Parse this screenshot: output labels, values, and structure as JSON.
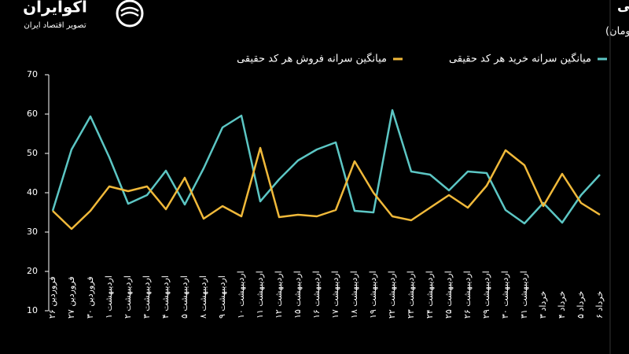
{
  "brand": {
    "name": "آکوایران",
    "tagline": "تصویر اقتصاد ایران"
  },
  "chart_data": {
    "type": "line",
    "title": "روند میانگین روزانه سرانه خرید و فروش هر کد حقیقی",
    "subtitle": "(واحد: میلیون تومان)",
    "categories": [
      "فروردین ۲۶",
      "فروردین ۲۷",
      "فروردین ۳۰",
      "اردیبهشت ۱",
      "اردیبهشت ۲",
      "اردیبهشت ۳",
      "اردیبهشت ۴",
      "اردیبهشت ۵",
      "اردیبهشت ۸",
      "اردیبهشت ۹",
      "اردیبهشت ۱۰",
      "اردیبهشت ۱۱",
      "اردیبهشت ۱۲",
      "اردیبهشت ۱۵",
      "اردیبهشت ۱۶",
      "اردیبهشت ۱۷",
      "اردیبهشت ۱۸",
      "اردیبهشت ۱۹",
      "اردیبهشت ۲۲",
      "اردیبهشت ۲۳",
      "اردیبهشت ۲۴",
      "اردیبهشت ۲۵",
      "اردیبهشت ۲۶",
      "اردیبهشت ۲۹",
      "اردیبهشت ۳۰",
      "اردیبهشت ۳۱",
      "خرداد ۳",
      "خرداد ۴",
      "خرداد ۵",
      "خرداد ۶"
    ],
    "series": [
      {
        "name": "میانگین سرانه خرید هر کد حقیقی",
        "color": "#5cc6c4",
        "values": [
          35.4,
          51,
          59.4,
          49,
          37.2,
          39.4,
          45.6,
          37,
          46.2,
          56.6,
          59.6,
          37.8,
          43.4,
          48.2,
          51,
          52.8,
          35.4,
          35,
          61,
          45.4,
          44.6,
          40.6,
          45.4,
          45,
          35.6,
          32.2,
          37.4,
          32.4,
          39.4,
          44.6
        ]
      },
      {
        "name": "میانگین سرانه فروش هر کد حقیقی",
        "color": "#f0b93a",
        "values": [
          35.4,
          30.8,
          35.4,
          41.6,
          40.4,
          41.6,
          35.8,
          43.8,
          33.4,
          36.6,
          34,
          51.4,
          33.8,
          34.4,
          34,
          35.6,
          48,
          40,
          34,
          33,
          36.2,
          39.4,
          36.2,
          41.8,
          50.8,
          47,
          36.6,
          44.8,
          37.4,
          34.4
        ]
      }
    ],
    "ylim": [
      10,
      70
    ],
    "yticks": [
      10,
      20,
      30,
      40,
      50,
      60,
      70
    ],
    "grid": false
  }
}
